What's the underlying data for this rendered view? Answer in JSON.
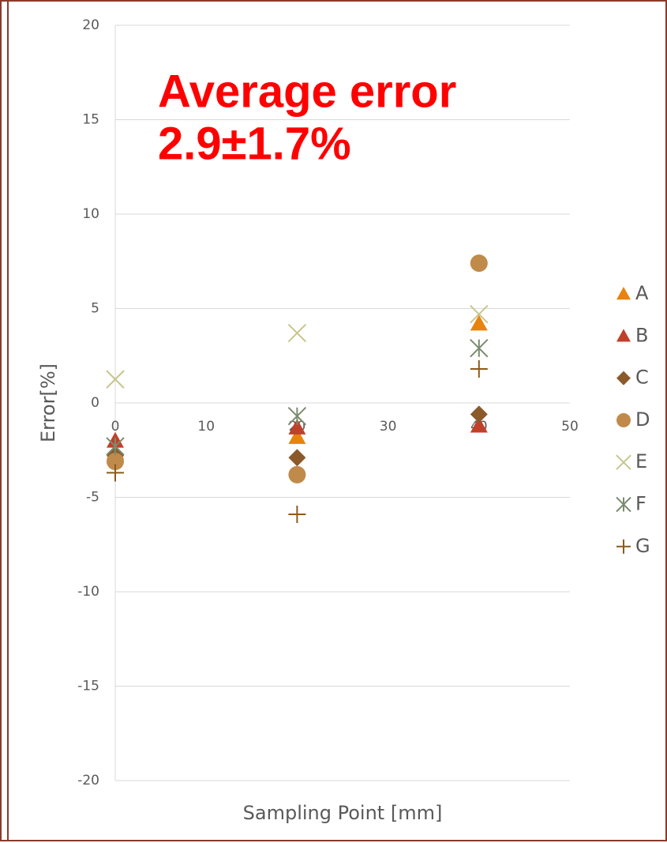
{
  "chart_data": {
    "type": "scatter",
    "annotations": [
      "Average error",
      "2.9±1.7%"
    ],
    "x_label": "Sampling Point [mm]",
    "y_label": "Error[%]",
    "xlim": [
      0,
      50
    ],
    "xticks": [
      0,
      10,
      20,
      30,
      40,
      50
    ],
    "ylim": [
      -20,
      20
    ],
    "yticks": [
      -20,
      -15,
      -10,
      -5,
      0,
      5,
      10,
      15,
      20
    ],
    "grid": true,
    "legend": "right",
    "x": [
      0,
      20,
      40
    ],
    "series": [
      {
        "name": "A",
        "marker": "triangle",
        "color": "#e8830e",
        "values": [
          -2.6,
          -1.8,
          4.2
        ]
      },
      {
        "name": "B",
        "marker": "triangle",
        "color": "#c0402a",
        "values": [
          -2.0,
          -1.3,
          -1.2
        ]
      },
      {
        "name": "C",
        "marker": "diamond",
        "color": "#8b5a2b",
        "values": [
          -2.8,
          -2.9,
          -0.6
        ]
      },
      {
        "name": "D",
        "marker": "circle",
        "color": "#c08a4a",
        "values": [
          -3.1,
          -3.8,
          7.4
        ]
      },
      {
        "name": "E",
        "marker": "x",
        "color": "#c9c58e",
        "values": [
          1.25,
          3.7,
          4.7
        ]
      },
      {
        "name": "F",
        "marker": "star",
        "color": "#7a8c6e",
        "values": [
          -2.3,
          -0.7,
          2.9
        ]
      },
      {
        "name": "G",
        "marker": "plus",
        "color": "#8b5a1a",
        "values": [
          -3.7,
          -5.9,
          1.8
        ]
      }
    ]
  }
}
